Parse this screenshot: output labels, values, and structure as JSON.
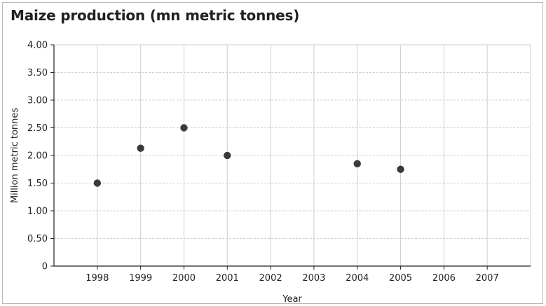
{
  "chart_data": {
    "type": "scatter",
    "title": "Maize production (mn metric tonnes)",
    "xlabel": "Year",
    "ylabel": "Million metric tonnes",
    "x": [
      1998,
      1999,
      2000,
      2001,
      2004,
      2005
    ],
    "y": [
      1.5,
      2.13,
      2.5,
      2.0,
      1.85,
      1.75
    ],
    "xlim": [
      1997,
      2008
    ],
    "ylim": [
      0,
      4
    ],
    "x_ticks": [
      "1998",
      "1999",
      "2000",
      "2001",
      "2002",
      "2003",
      "2004",
      "2005",
      "2006",
      "2007"
    ],
    "y_ticks": [
      "0",
      "0.50",
      "1.00",
      "1.50",
      "2.00",
      "2.50",
      "3.00",
      "3.50",
      "4.00"
    ],
    "grid": true,
    "colors": {
      "marker": "#3a3a3a",
      "grid": "#cfcfcf",
      "axis": "#231f20"
    }
  }
}
